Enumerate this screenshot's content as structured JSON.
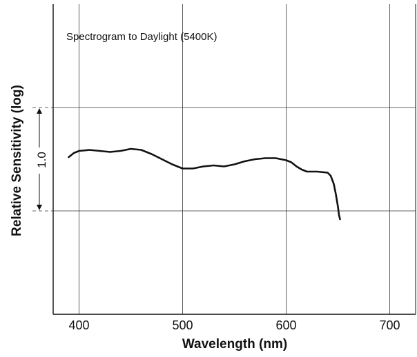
{
  "chart_data": {
    "type": "line",
    "annotation": "Spectrogram to Daylight (5400K)",
    "xlabel": "Wavelength (nm)",
    "ylabel": "Relative Sensitivity (log)",
    "xlim": [
      375,
      725
    ],
    "ylim": [
      -1.0,
      2.0
    ],
    "x_ticks": [
      {
        "value": 400,
        "label": "400"
      },
      {
        "value": 500,
        "label": "500"
      },
      {
        "value": 600,
        "label": "600"
      },
      {
        "value": 700,
        "label": "700"
      }
    ],
    "y_gridlines": [
      0,
      1
    ],
    "scale_bar": {
      "from": 0,
      "to": 1,
      "label": "1.0"
    },
    "grid": true,
    "legend": "none",
    "colors": {
      "line": "#111111",
      "grid": "#333333",
      "axis": "#111111"
    },
    "series": [
      {
        "points": [
          [
            390,
            0.52
          ],
          [
            395,
            0.56
          ],
          [
            400,
            0.58
          ],
          [
            410,
            0.59
          ],
          [
            420,
            0.58
          ],
          [
            430,
            0.57
          ],
          [
            440,
            0.58
          ],
          [
            450,
            0.6
          ],
          [
            460,
            0.59
          ],
          [
            470,
            0.55
          ],
          [
            480,
            0.5
          ],
          [
            490,
            0.45
          ],
          [
            500,
            0.41
          ],
          [
            510,
            0.41
          ],
          [
            520,
            0.43
          ],
          [
            530,
            0.44
          ],
          [
            540,
            0.43
          ],
          [
            550,
            0.45
          ],
          [
            560,
            0.48
          ],
          [
            570,
            0.5
          ],
          [
            580,
            0.51
          ],
          [
            590,
            0.51
          ],
          [
            600,
            0.49
          ],
          [
            605,
            0.47
          ],
          [
            610,
            0.43
          ],
          [
            615,
            0.4
          ],
          [
            620,
            0.38
          ],
          [
            630,
            0.38
          ],
          [
            640,
            0.37
          ],
          [
            643,
            0.34
          ],
          [
            646,
            0.26
          ],
          [
            648,
            0.16
          ],
          [
            650,
            0.04
          ],
          [
            651,
            -0.04
          ],
          [
            652,
            -0.08
          ]
        ]
      }
    ]
  }
}
